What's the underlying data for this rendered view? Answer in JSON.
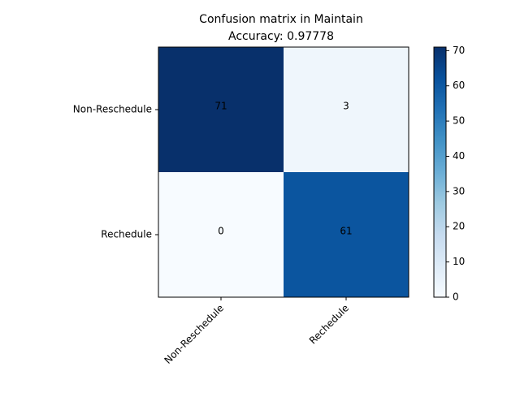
{
  "chart_data": {
    "type": "heatmap",
    "title": "Confusion matrix in Maintain",
    "subtitle": "Accuracy: 0.97778",
    "x_categories": [
      "Non-Reschedule",
      "Rechedule"
    ],
    "y_categories": [
      "Non-Reschedule",
      "Rechedule"
    ],
    "values": [
      [
        71,
        3
      ],
      [
        0,
        61
      ]
    ],
    "colormap": "Blues",
    "color_range": [
      0,
      71
    ],
    "colorbar_ticks": [
      0,
      10,
      20,
      30,
      40,
      50,
      60,
      70
    ],
    "grid": false,
    "xlabel": "",
    "ylabel": ""
  }
}
